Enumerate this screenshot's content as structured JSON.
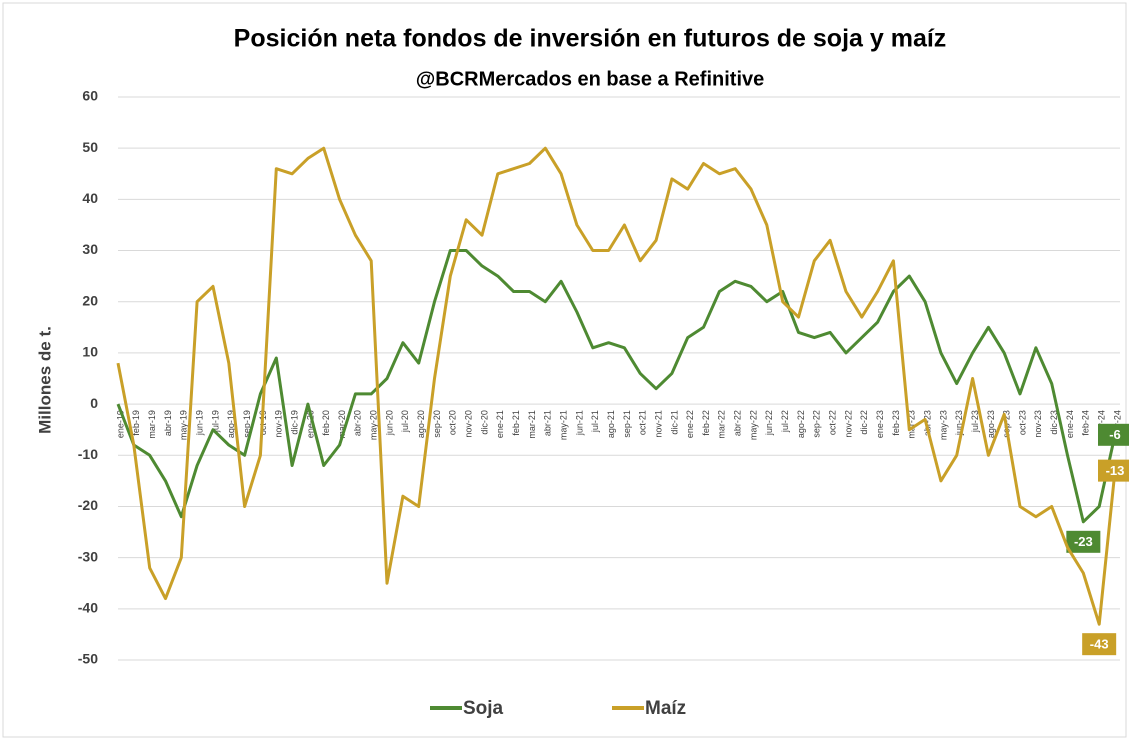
{
  "chart_data": {
    "type": "line",
    "title": "Posición neta fondos de inversión en futuros de soja y maíz",
    "subtitle": "@BCRMercados en base a Refinitive",
    "y_label": "Millones de t.",
    "categories": [
      "ene-19",
      "feb-19",
      "mar-19",
      "abr-19",
      "may-19",
      "jun-19",
      "jul-19",
      "ago-19",
      "sep-19",
      "oct-19",
      "nov-19",
      "dic-19",
      "ene-20",
      "feb-20",
      "mar-20",
      "abr-20",
      "may-20",
      "jun-20",
      "jul-20",
      "ago-20",
      "sep-20",
      "oct-20",
      "nov-20",
      "dic-20",
      "ene-21",
      "feb-21",
      "mar-21",
      "abr-21",
      "may-21",
      "jun-21",
      "jul-21",
      "ago-21",
      "sep-21",
      "oct-21",
      "nov-21",
      "dic-21",
      "ene-22",
      "feb-22",
      "mar-22",
      "abr-22",
      "may-22",
      "jun-22",
      "jul-22",
      "ago-22",
      "sep-22",
      "oct-22",
      "nov-22",
      "dic-22",
      "ene-23",
      "feb-23",
      "mar-23",
      "abr-23",
      "may-23",
      "jun-23",
      "jul-23",
      "ago-23",
      "sep-23",
      "oct-23",
      "nov-23",
      "dic-23",
      "ene-24",
      "feb-24",
      "mar-24",
      "abr-24"
    ],
    "series": [
      {
        "name": "Soja",
        "color": "#4e8a32",
        "values": [
          0,
          -8,
          -10,
          -15,
          -22,
          -12,
          -5,
          -8,
          -10,
          2,
          9,
          -12,
          0,
          -12,
          -8,
          2,
          2,
          5,
          12,
          8,
          20,
          30,
          30,
          27,
          25,
          22,
          22,
          20,
          24,
          18,
          11,
          12,
          11,
          6,
          3,
          6,
          13,
          15,
          22,
          24,
          23,
          20,
          22,
          14,
          13,
          14,
          10,
          13,
          16,
          22,
          25,
          20,
          10,
          4,
          10,
          15,
          10,
          2,
          11,
          4,
          -10,
          -23,
          -20,
          -6
        ],
        "value_labels": [
          null,
          null,
          null,
          null,
          null,
          null,
          null,
          null,
          null,
          null,
          null,
          null,
          null,
          null,
          null,
          null,
          null,
          null,
          null,
          null,
          null,
          null,
          null,
          null,
          null,
          null,
          null,
          null,
          null,
          null,
          null,
          null,
          null,
          null,
          null,
          null,
          null,
          null,
          null,
          null,
          null,
          null,
          null,
          null,
          null,
          null,
          null,
          null,
          null,
          null,
          null,
          null,
          null,
          null,
          null,
          null,
          null,
          null,
          null,
          null,
          null,
          "-23",
          null,
          "-6"
        ]
      },
      {
        "name": "Maíz",
        "color": "#c9a028",
        "values": [
          8,
          -8,
          -32,
          -38,
          -30,
          20,
          23,
          8,
          -20,
          -10,
          46,
          45,
          48,
          50,
          40,
          33,
          28,
          -35,
          -18,
          -20,
          5,
          25,
          36,
          33,
          45,
          46,
          47,
          50,
          45,
          35,
          30,
          30,
          35,
          28,
          32,
          44,
          42,
          47,
          45,
          46,
          42,
          35,
          20,
          17,
          28,
          32,
          22,
          17,
          22,
          28,
          -5,
          -3,
          -15,
          -10,
          5,
          -10,
          -2,
          -20,
          -22,
          -20,
          -28,
          -33,
          -43,
          -13
        ],
        "value_labels": [
          null,
          null,
          null,
          null,
          null,
          null,
          null,
          null,
          null,
          null,
          null,
          null,
          null,
          null,
          null,
          null,
          null,
          null,
          null,
          null,
          null,
          null,
          null,
          null,
          null,
          null,
          null,
          null,
          null,
          null,
          null,
          null,
          null,
          null,
          null,
          null,
          null,
          null,
          null,
          null,
          null,
          null,
          null,
          null,
          null,
          null,
          null,
          null,
          null,
          null,
          null,
          null,
          null,
          null,
          null,
          null,
          null,
          null,
          null,
          null,
          null,
          null,
          "-43",
          "-13"
        ]
      }
    ],
    "ylim": [
      -50,
      60
    ],
    "yticks": [
      -50,
      -40,
      -30,
      -20,
      -10,
      0,
      10,
      20,
      30,
      40,
      50,
      60
    ],
    "grid": true,
    "legend": "bottom"
  }
}
